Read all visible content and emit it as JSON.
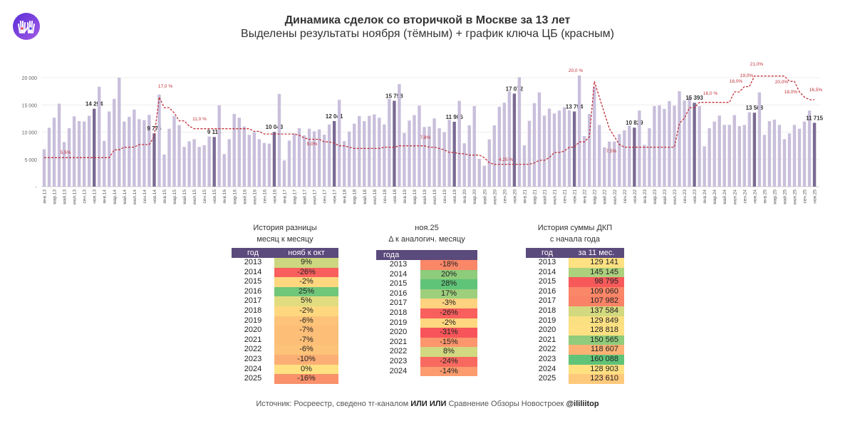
{
  "header": {
    "title": "Динамика сделок со вторичкой в Москве за 13 лет",
    "subtitle": "Выделены результаты ноября (тёмным) + график ключа ЦБ (красным)"
  },
  "colors": {
    "bar": "#c9bfdb",
    "bar_highlight": "#7a6a93",
    "rate_line": "#c0303a",
    "header_bg": "#5b4a7c"
  },
  "chart_data": {
    "type": "bar",
    "ylim": [
      0,
      20000
    ],
    "y_tick_labels": [
      "-",
      "5 000",
      "10 000",
      "15 000",
      "20 000"
    ],
    "grid": true,
    "x_tick_labels": [
      "янв.13",
      "мар.13",
      "май.13",
      "июл.13",
      "сен.13",
      "ноя.13",
      "янв.14",
      "мар.14",
      "май.14",
      "июл.14",
      "сен.14",
      "ноя.14",
      "янв.15",
      "мар.15",
      "май.15",
      "июл.15",
      "сен.15",
      "ноя.15",
      "янв.16",
      "мар.16",
      "май.16",
      "июл.16",
      "сен.16",
      "ноя.16",
      "янв.17",
      "мар.17",
      "май.17",
      "июл.17",
      "сен.17",
      "ноя.17",
      "янв.18",
      "мар.18",
      "май.18",
      "июл.18",
      "сен.18",
      "ноя.18",
      "янв.19",
      "мар.19",
      "май.19",
      "июл.19",
      "сен.19",
      "ноя.19",
      "янв.20",
      "мар.20",
      "май.20",
      "июл.20",
      "сен.20",
      "ноя.20",
      "янв.21",
      "мар.21",
      "май.21",
      "июл.21",
      "сен.21",
      "ноя.21",
      "янв.22",
      "мар.22",
      "май.22",
      "июл.22",
      "сен.22",
      "ноя.22",
      "янв.23",
      "мар.23",
      "май.23",
      "июл.23",
      "сен.23",
      "ноя.23",
      "янв.24",
      "мар.24",
      "май.24",
      "июл.24",
      "сен.24",
      "ноя.24",
      "янв.25",
      "мар.25",
      "май.25",
      "июл.25",
      "сен.25",
      "ноя.25"
    ],
    "values": [
      6870,
      10800,
      12650,
      15230,
      8180,
      10720,
      12900,
      12030,
      11950,
      13000,
      14294,
      18340,
      8400,
      13790,
      16100,
      20000,
      11950,
      12820,
      14140,
      12380,
      12210,
      13170,
      9775,
      16890,
      5900,
      10630,
      12950,
      11290,
      7300,
      8310,
      8710,
      7300,
      7610,
      9190,
      9118,
      14920,
      5990,
      8710,
      13350,
      12650,
      11030,
      9500,
      9980,
      8710,
      8010,
      7900,
      10043,
      17020,
      4800,
      8450,
      9760,
      10720,
      9410,
      10630,
      10150,
      10500,
      9540,
      11420,
      12041,
      15930,
      8360,
      10110,
      11550,
      12950,
      12030,
      13000,
      13260,
      12650,
      11420,
      16100,
      15758,
      18820,
      9850,
      12120,
      13130,
      14880,
      10940,
      11030,
      12520,
      10720,
      9980,
      12250,
      11905,
      15750,
      7960,
      11250,
      14790,
      5120,
      3850,
      8670,
      11250,
      14660,
      15400,
      17460,
      17072,
      20090,
      7570,
      12080,
      15320,
      17290,
      13040,
      14310,
      13430,
      13960,
      14570,
      14000,
      13794,
      20390,
      9280,
      13350,
      18290,
      11330,
      7220,
      8270,
      8270,
      9630,
      10330,
      11200,
      10829,
      13960,
      7660,
      10720,
      14790,
      14920,
      14270,
      15710,
      14880,
      17500,
      15800,
      16410,
      15393,
      14790,
      7400,
      10720,
      11950,
      13040,
      11330,
      11330,
      13130,
      11120,
      11330,
      13650,
      13568,
      17290,
      9500,
      12030,
      12300,
      11330,
      8710,
      9760,
      11330,
      10630,
      11950,
      13960,
      11715
    ],
    "november_labels": [
      "14 294",
      "9 775",
      "9 118",
      "10 043",
      "12 041",
      "15 758",
      "11 905",
      "17 072",
      "13 794",
      "10 829",
      "15 393",
      "13 568",
      "11 715"
    ],
    "key_rate": {
      "values": [
        5.5,
        5.5,
        5.5,
        5.5,
        5.5,
        5.5,
        5.5,
        5.5,
        5.5,
        5.5,
        5.5,
        5.5,
        5.5,
        5.5,
        7,
        7,
        7.5,
        7.5,
        7.5,
        8,
        8,
        8,
        9.5,
        17,
        15,
        15,
        14,
        12.5,
        12.5,
        11.5,
        11,
        11,
        11,
        11,
        11,
        11,
        11,
        11,
        11,
        11,
        11,
        11,
        10.5,
        10.5,
        10,
        10,
        10,
        10,
        10,
        10,
        10,
        9.75,
        9.25,
        9,
        9,
        9,
        8.5,
        8.5,
        8.25,
        7.75,
        7.75,
        7.5,
        7.25,
        7.25,
        7.25,
        7.25,
        7.25,
        7.25,
        7.5,
        7.5,
        7.5,
        7.75,
        7.75,
        7.75,
        7.75,
        7.75,
        7.75,
        7.5,
        7.5,
        7.25,
        7,
        6.5,
        6.5,
        6.25,
        6.25,
        6,
        6,
        6,
        5.5,
        4.5,
        4.25,
        4.25,
        4.25,
        4.25,
        4.25,
        4.25,
        4.25,
        4.25,
        4.5,
        5,
        5,
        5.5,
        6.5,
        6.5,
        6.75,
        7.5,
        7.5,
        8.5,
        8.5,
        9.5,
        20,
        17,
        14,
        11,
        9.5,
        8,
        7.5,
        7.5,
        7.5,
        7.5,
        7.5,
        7.5,
        7.5,
        7.5,
        7.5,
        7.5,
        7.5,
        12,
        13,
        15,
        15,
        16,
        16,
        16,
        16,
        16,
        16,
        16,
        18,
        18,
        19,
        19,
        21,
        21,
        21,
        21,
        21,
        21,
        21,
        20,
        20,
        18,
        17,
        16.5,
        16.5
      ],
      "labels": [
        "5,5%",
        "17,0 %",
        "11,0 %",
        "9,0%",
        "7,8%",
        "4,25 %",
        "20,0 %",
        "7,5%",
        "16,0 %",
        "18,0%",
        "19,0%",
        "21,0%",
        "20,0%",
        "18,0%",
        "16,5%"
      ]
    }
  },
  "tables": {
    "mom": {
      "caption1": "История разницы",
      "caption2": "месяц к месяцу",
      "col1": "год",
      "col2": "нояб к окт",
      "rows": [
        [
          "2013",
          "9%"
        ],
        [
          "2014",
          "-26%"
        ],
        [
          "2015",
          "-2%"
        ],
        [
          "2016",
          "25%"
        ],
        [
          "2017",
          "5%"
        ],
        [
          "2018",
          "-2%"
        ],
        [
          "2019",
          "-6%"
        ],
        [
          "2020",
          "-7%"
        ],
        [
          "2021",
          "-7%"
        ],
        [
          "2022",
          "-6%"
        ],
        [
          "2023",
          "-10%"
        ],
        [
          "2024",
          "0%"
        ],
        [
          "2025",
          "-16%"
        ]
      ]
    },
    "yoy": {
      "caption1": "ноя.25",
      "caption2": "Δ к аналогич. месяцу",
      "col1": "года",
      "rows": [
        [
          "2013",
          "-18%"
        ],
        [
          "2014",
          "20%"
        ],
        [
          "2015",
          "28%"
        ],
        [
          "2016",
          "17%"
        ],
        [
          "2017",
          "-3%"
        ],
        [
          "2018",
          "-26%"
        ],
        [
          "2019",
          "-2%"
        ],
        [
          "2020",
          "-31%"
        ],
        [
          "2021",
          "-15%"
        ],
        [
          "2022",
          "8%"
        ],
        [
          "2023",
          "-24%"
        ],
        [
          "2024",
          "-14%"
        ]
      ]
    },
    "ytd": {
      "caption1": "История суммы ДКП",
      "caption2": "с начала года",
      "col1": "год",
      "col2": "за 11 мес.",
      "rows": [
        [
          "2013",
          "129 141"
        ],
        [
          "2014",
          "145 145"
        ],
        [
          "2015",
          "98 795"
        ],
        [
          "2016",
          "109 060"
        ],
        [
          "2017",
          "107 982"
        ],
        [
          "2018",
          "137 584"
        ],
        [
          "2019",
          "129 849"
        ],
        [
          "2020",
          "128 818"
        ],
        [
          "2021",
          "150 565"
        ],
        [
          "2022",
          "118 607"
        ],
        [
          "2023",
          "160 088"
        ],
        [
          "2024",
          "128 903"
        ],
        [
          "2025",
          "123 610"
        ]
      ]
    }
  },
  "footer": {
    "prefix": "Источник: Росреестр, сведено тг-каналом ",
    "channel": "ИЛИ ИЛИ",
    "middle": " Сравнение Обзоры Новостроек  ",
    "handle": "@ililiitop"
  }
}
